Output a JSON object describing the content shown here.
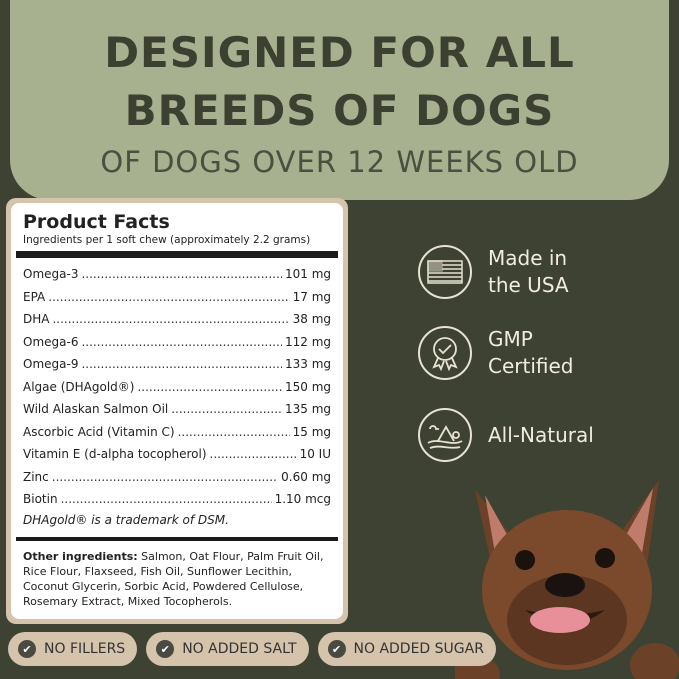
{
  "banner": {
    "line1": "DESIGNED FOR ALL",
    "line2": "BREEDS OF DOGS",
    "line3": "OF DOGS OVER 12 WEEKS OLD"
  },
  "facts": {
    "title": "Product Facts",
    "subtitle": "Ingredients per 1 soft chew (approximately 2.2 grams)",
    "rows": [
      {
        "name": "Omega-3",
        "value": "101 mg"
      },
      {
        "name": "EPA",
        "value": "17 mg"
      },
      {
        "name": "DHA",
        "value": "38 mg"
      },
      {
        "name": "Omega-6",
        "value": "112 mg"
      },
      {
        "name": "Omega-9",
        "value": "133 mg"
      },
      {
        "name": "Algae (DHAgold®)",
        "value": "150 mg"
      },
      {
        "name": "Wild Alaskan Salmon Oil",
        "value": "135 mg"
      },
      {
        "name": "Ascorbic Acid (Vitamin C)",
        "value": "15 mg"
      },
      {
        "name": "Vitamin E (d-alpha tocopherol)",
        "value": "10 IU"
      },
      {
        "name": "Zinc",
        "value": "0.60 mg"
      },
      {
        "name": "Biotin",
        "value": "1.10 mcg"
      }
    ],
    "trademark": "DHAgold® is a trademark of DSM.",
    "other_label": "Other ingredients:",
    "other_text": " Salmon, Oat Flour, Palm Fruit Oil, Rice Flour, Flaxseed, Fish Oil, Sunflower Lecithin, Coconut Glycerin, Sorbic Acid, Powdered Cellulose, Rosemary Extract, Mixed Tocopherols."
  },
  "features": [
    {
      "icon": "usa-flag-icon",
      "line1": "Made in",
      "line2": "the USA"
    },
    {
      "icon": "certified-badge-icon",
      "line1": "GMP",
      "line2": "Certified"
    },
    {
      "icon": "nature-landscape-icon",
      "line1": "All-Natural",
      "line2": ""
    }
  ],
  "pills": [
    "NO FILLERS",
    "NO ADDED SALT",
    "NO ADDED SUGAR"
  ],
  "colors": {
    "background": "#3e4233",
    "banner": "#a8b18f",
    "pill": "#d5c3ac"
  }
}
